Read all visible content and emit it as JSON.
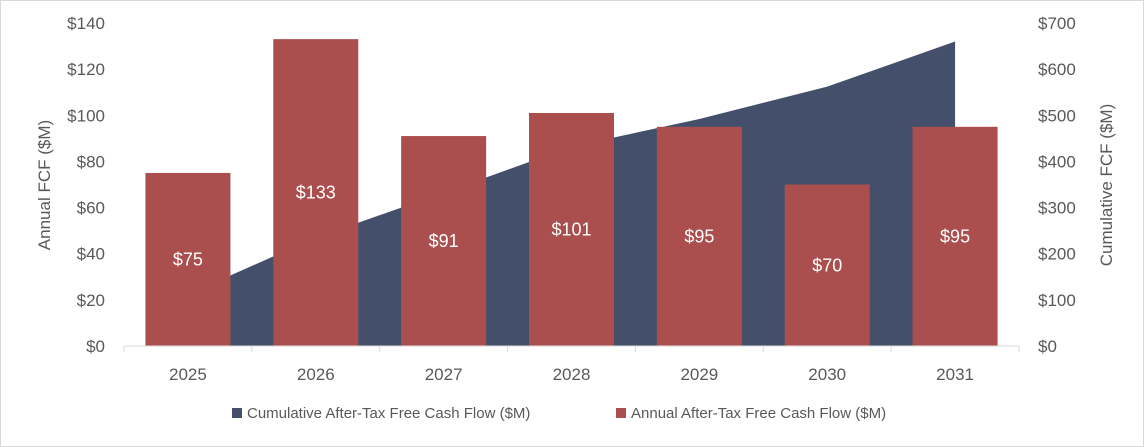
{
  "chart_data": {
    "type": "bar",
    "categories": [
      "2025",
      "2026",
      "2027",
      "2028",
      "2029",
      "2030",
      "2031"
    ],
    "series": [
      {
        "name": "Cumulative After-Tax Free Cash Flow ($M)",
        "kind": "area",
        "axis": "right",
        "color": "#44506b",
        "values": [
          112,
          235,
          332,
          432,
          492,
          562,
          660
        ]
      },
      {
        "name": "Annual After-Tax Free Cash Flow ($M)",
        "kind": "bar",
        "axis": "left",
        "color": "#aa4f4d",
        "values": [
          75,
          133,
          91,
          101,
          95,
          70,
          95
        ],
        "labels": [
          "$75",
          "$133",
          "$91",
          "$101",
          "$95",
          "$70",
          "$95"
        ]
      }
    ],
    "ylabel": "Annual FCF ($M)",
    "y2label": "Cumulative FCF ($M)",
    "ylim": [
      0,
      140
    ],
    "y2lim": [
      0,
      700
    ],
    "yticks": [
      "$0",
      "$20",
      "$40",
      "$60",
      "$80",
      "$100",
      "$120",
      "$140"
    ],
    "y2ticks": [
      "$0",
      "$100",
      "$200",
      "$300",
      "$400",
      "$500",
      "$600",
      "$700"
    ],
    "legend_position": "bottom"
  }
}
